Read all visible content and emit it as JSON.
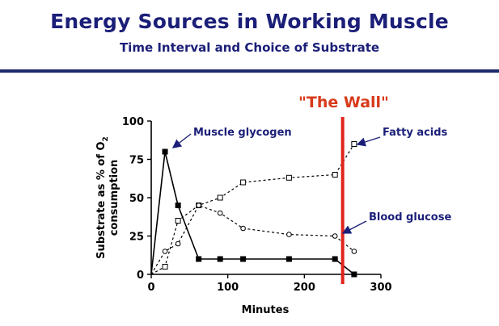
{
  "header": {
    "title": "Energy Sources in Working Muscle",
    "subtitle": "Time Interval and Choice of Substrate"
  },
  "colors": {
    "title": "#1b1f78",
    "annotation_text": "#1b1f78",
    "wall": "#e0231b",
    "wall_label": "#d83a1a",
    "axis": "#000000"
  },
  "chart_data": {
    "type": "line",
    "xlabel": "Minutes",
    "ylabel": "Substrate as % of O2 consumption",
    "ylabel_parts": {
      "line1_main": "Substrate as % of O",
      "line1_sub": "2",
      "line2": "consumption"
    },
    "xlim": [
      0,
      300
    ],
    "ylim": [
      0,
      100
    ],
    "x_ticks": [
      0,
      100,
      200,
      300
    ],
    "y_ticks": [
      0,
      25,
      50,
      75,
      100
    ],
    "x_tick_labels": [
      "0",
      "100",
      "200",
      "300"
    ],
    "y_tick_labels": [
      "0",
      "25",
      "50",
      "75",
      "100"
    ],
    "grid": false,
    "wall": {
      "x": 250,
      "label": "\"The Wall\""
    },
    "series": [
      {
        "name": "Muscle glycogen",
        "marker": "filled-square",
        "line_style": "solid",
        "x": [
          0,
          18,
          35,
          62,
          90,
          120,
          180,
          240,
          265
        ],
        "y": [
          0,
          80,
          45,
          10,
          10,
          10,
          10,
          10,
          0
        ]
      },
      {
        "name": "Fatty acids",
        "marker": "open-square",
        "line_style": "dashed",
        "x": [
          0,
          18,
          35,
          62,
          90,
          120,
          180,
          240,
          265
        ],
        "y": [
          0,
          5,
          35,
          45,
          50,
          60,
          63,
          65,
          85
        ]
      },
      {
        "name": "Blood glucose",
        "marker": "open-circle",
        "line_style": "dashed",
        "x": [
          0,
          18,
          35,
          62,
          90,
          120,
          180,
          240,
          265
        ],
        "y": [
          0,
          15,
          20,
          45,
          40,
          30,
          26,
          25,
          15
        ]
      }
    ]
  }
}
